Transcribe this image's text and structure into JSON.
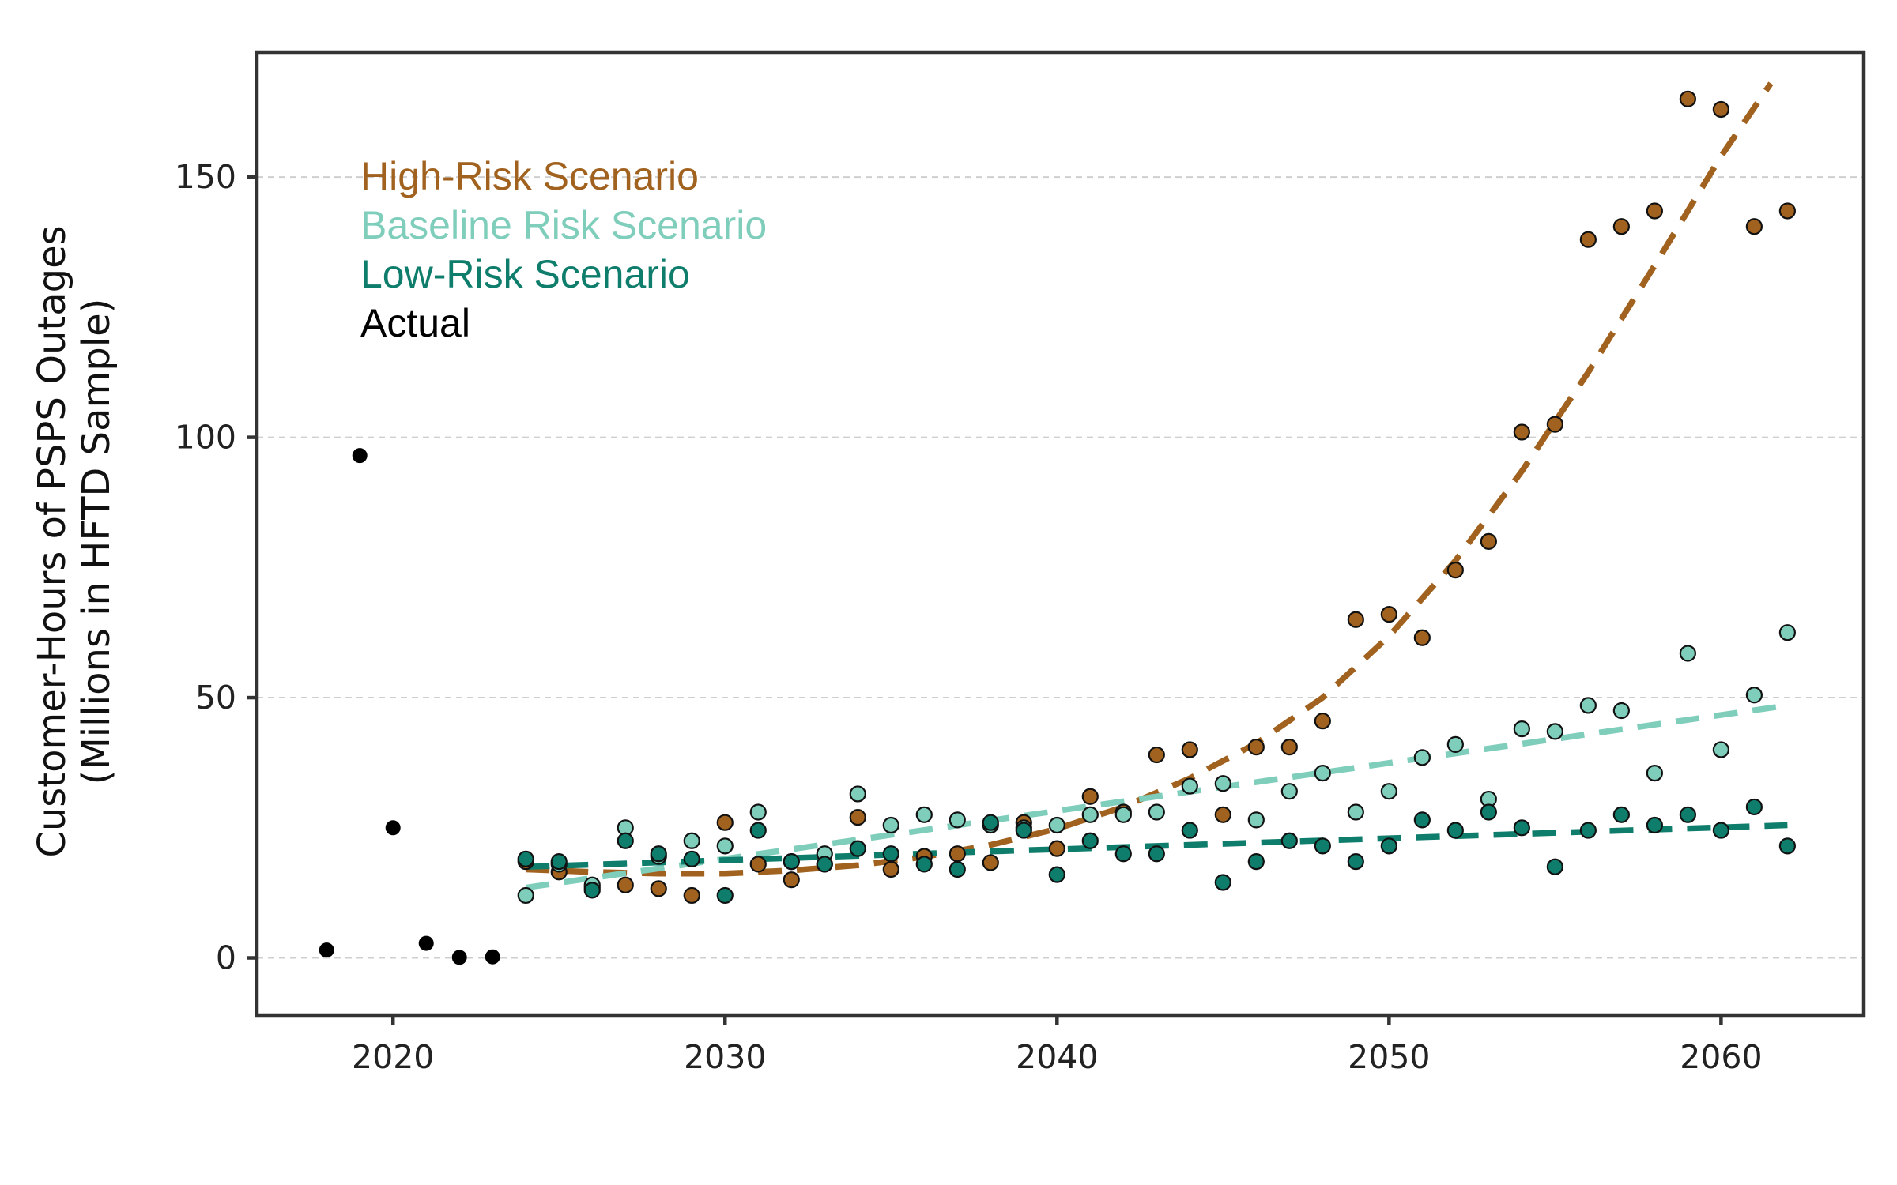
{
  "chart_data": {
    "type": "scatter",
    "title": "",
    "xlabel": "",
    "ylabel": [
      "Customer-Hours of PSPS Outages",
      "(Millions in HFTD Sample)"
    ],
    "xlim": [
      2015.9,
      2064.3
    ],
    "ylim": [
      -11,
      174
    ],
    "x_ticks": [
      2020,
      2030,
      2040,
      2050,
      2060
    ],
    "y_ticks": [
      0,
      50,
      100,
      150
    ],
    "grid": "horizontal dashed",
    "legend_position": "top-left",
    "series": [
      {
        "name": "High-Risk Scenario",
        "color": "#a0621e",
        "x": [
          2024,
          2025,
          2026,
          2027,
          2028,
          2029,
          2030,
          2031,
          2032,
          2033,
          2034,
          2035,
          2036,
          2037,
          2038,
          2039,
          2040,
          2041,
          2042,
          2043,
          2044,
          2045,
          2046,
          2047,
          2048,
          2049,
          2050,
          2051,
          2052,
          2053,
          2054,
          2055,
          2056,
          2057,
          2058,
          2059,
          2060,
          2061,
          2062
        ],
        "values": [
          18.5,
          16.5,
          13.5,
          14,
          13.3,
          12,
          26,
          18,
          15,
          18,
          27,
          17,
          19.5,
          20,
          18.3,
          26,
          21,
          31,
          28,
          39,
          40,
          27.5,
          40.5,
          40.5,
          45.5,
          65,
          66,
          61.5,
          74.5,
          80,
          101,
          102.5,
          138,
          140.5,
          143.5,
          165,
          163,
          140.5,
          143.5
        ],
        "trend": {
          "x": [
            2024,
            2026,
            2028,
            2030,
            2032,
            2034,
            2036,
            2038,
            2040,
            2042,
            2044,
            2046,
            2048,
            2050,
            2052,
            2054,
            2056,
            2058,
            2060,
            2061.5
          ],
          "values": [
            17,
            16.5,
            16.2,
            16.2,
            16.8,
            17.8,
            19.4,
            21.7,
            24.8,
            29,
            34.5,
            41.2,
            50,
            61.8,
            76.3,
            93.5,
            112.5,
            133,
            154,
            168
          ]
        }
      },
      {
        "name": "Baseline Risk Scenario",
        "color": "#7fcdbb",
        "x": [
          2024,
          2025,
          2026,
          2027,
          2028,
          2029,
          2030,
          2031,
          2032,
          2033,
          2034,
          2035,
          2036,
          2037,
          2038,
          2039,
          2040,
          2041,
          2042,
          2043,
          2044,
          2045,
          2046,
          2047,
          2048,
          2049,
          2050,
          2051,
          2052,
          2053,
          2054,
          2055,
          2056,
          2057,
          2058,
          2059,
          2060,
          2061,
          2062
        ],
        "values": [
          12,
          18,
          14,
          25,
          19.5,
          22.5,
          21.5,
          28,
          18.5,
          20,
          31.5,
          25.5,
          27.5,
          26.5,
          25.5,
          25,
          25.5,
          27.5,
          27.5,
          28,
          33,
          33.5,
          26.5,
          32,
          35.5,
          28,
          32,
          38.5,
          41,
          30.5,
          44,
          43.5,
          48.5,
          47.5,
          35.5,
          58.5,
          40,
          50.5,
          62.5
        ],
        "trend": {
          "x": [
            2024,
            2062
          ],
          "values": [
            13.5,
            48.5
          ]
        }
      },
      {
        "name": "Low-Risk Scenario",
        "color": "#0f7d6b",
        "x": [
          2024,
          2025,
          2026,
          2027,
          2028,
          2029,
          2030,
          2031,
          2032,
          2033,
          2034,
          2035,
          2036,
          2037,
          2038,
          2039,
          2040,
          2041,
          2042,
          2043,
          2044,
          2045,
          2046,
          2047,
          2048,
          2049,
          2050,
          2051,
          2052,
          2053,
          2054,
          2055,
          2056,
          2057,
          2058,
          2059,
          2060,
          2061,
          2062
        ],
        "values": [
          19,
          18.5,
          13,
          22.5,
          20,
          19,
          12,
          24.5,
          18.5,
          18,
          21,
          20,
          18,
          17,
          26,
          24.5,
          16,
          22.5,
          20,
          20,
          24.5,
          14.5,
          18.5,
          22.5,
          21.5,
          18.5,
          21.5,
          26.5,
          24.5,
          28,
          25,
          17.5,
          24.5,
          27.5,
          25.5,
          27.5,
          24.5,
          29,
          21.5
        ],
        "trend": {
          "x": [
            2024,
            2062
          ],
          "values": [
            17.5,
            25.5
          ]
        }
      },
      {
        "name": "Actual",
        "color": "#000000",
        "x": [
          2018,
          2019,
          2020,
          2021,
          2022,
          2023
        ],
        "values": [
          1.5,
          96.5,
          25,
          2.8,
          0.1,
          0.2
        ]
      }
    ]
  }
}
